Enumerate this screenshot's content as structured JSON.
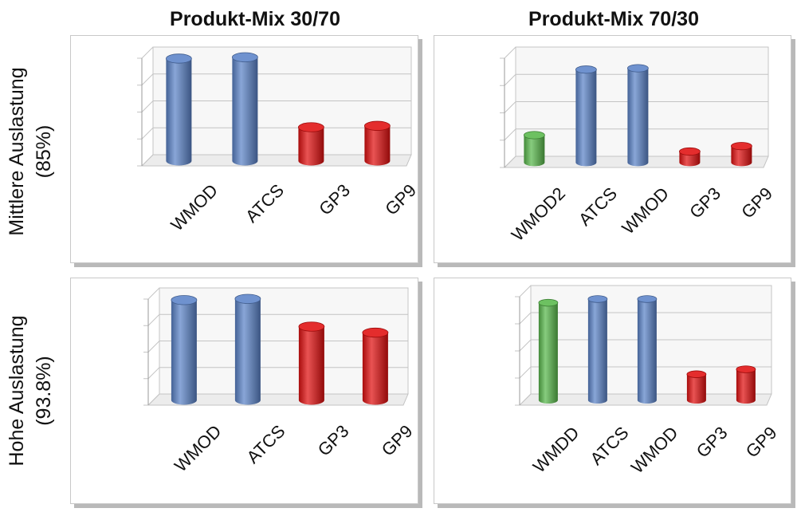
{
  "column_titles": [
    "Produkt-Mix 30/70",
    "Produkt-Mix 70/30"
  ],
  "row_titles": [
    {
      "line1": "Mittlere Auslastung",
      "line2": "(85%)"
    },
    {
      "line1": "Hohe Auslastung",
      "line2": "(93.8%)"
    }
  ],
  "colors": {
    "blue": "#5b83c8",
    "red": "#e01010",
    "green": "#59b84c",
    "grid": "#c4c4c4"
  },
  "chart_data": [
    {
      "type": "bar",
      "column": "Produkt-Mix 30/70",
      "row": "Mittlere Auslastung (85%)",
      "categories": [
        "WMOD",
        "ATCS",
        "GP3",
        "GP9"
      ],
      "values": [
        3.8,
        3.85,
        1.25,
        1.3
      ],
      "bar_colors": [
        "blue",
        "blue",
        "red",
        "red"
      ],
      "ylim": [
        0,
        4
      ],
      "grid": true
    },
    {
      "type": "bar",
      "column": "Produkt-Mix 70/30",
      "row": "Mittlere Auslastung (85%)",
      "categories": [
        "WMOD2",
        "ATCS",
        "WMOD",
        "GP3",
        "GP9"
      ],
      "values": [
        1.0,
        3.4,
        3.45,
        0.4,
        0.6
      ],
      "bar_colors": [
        "green",
        "blue",
        "blue",
        "red",
        "red"
      ],
      "ylim": [
        0,
        4
      ],
      "grid": true
    },
    {
      "type": "bar",
      "column": "Produkt-Mix 30/70",
      "row": "Hohe Auslastung (93.8%)",
      "categories": [
        "WMOD",
        "ATCS",
        "GP3",
        "GP9"
      ],
      "values": [
        4.15,
        4.2,
        3.05,
        2.8
      ],
      "bar_colors": [
        "blue",
        "blue",
        "red",
        "red"
      ],
      "ylim": [
        0,
        4.4
      ],
      "grid": true
    },
    {
      "type": "bar",
      "column": "Produkt-Mix 70/30",
      "row": "Hohe Auslastung (93.8%)",
      "categories": [
        "WMDD",
        "ATCS",
        "WMOD",
        "GP3",
        "GP9"
      ],
      "values": [
        3.95,
        4.1,
        4.1,
        1.05,
        1.25
      ],
      "bar_colors": [
        "green",
        "blue",
        "blue",
        "red",
        "red"
      ],
      "ylim": [
        0,
        4.4
      ],
      "grid": true
    }
  ]
}
